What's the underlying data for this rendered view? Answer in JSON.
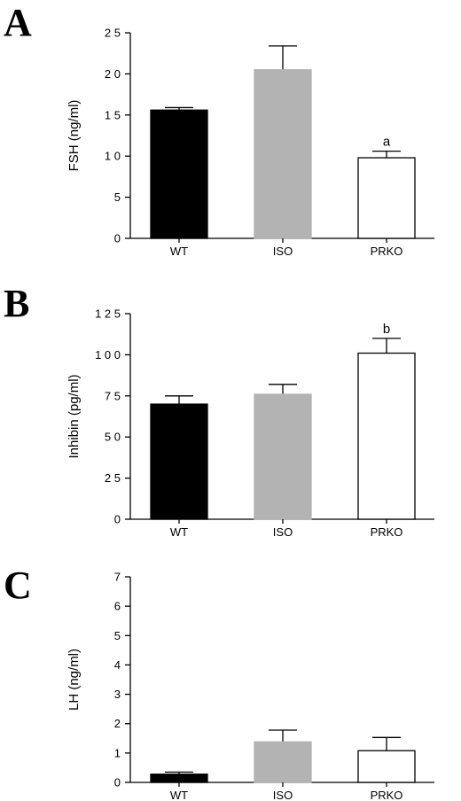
{
  "chart_data": [
    {
      "panel": "A",
      "type": "bar",
      "categories": [
        "WT",
        "ISO",
        "PRKO"
      ],
      "values": [
        15.6,
        20.5,
        9.8
      ],
      "errors": [
        0.3,
        2.9,
        0.8
      ],
      "colors": [
        "#000000",
        "#b3b3b3",
        "#ffffff"
      ],
      "ylabel": "FSH (ng/ml)",
      "ylim": [
        0,
        25
      ],
      "yticks": [
        0,
        5,
        10,
        15,
        20,
        25
      ],
      "ytick_labels": [
        "0",
        "5",
        "1 0",
        "1 5",
        "2 0",
        "2 5"
      ],
      "annotations": [
        {
          "category": "PRKO",
          "text": "a"
        }
      ]
    },
    {
      "panel": "B",
      "type": "bar",
      "categories": [
        "WT",
        "ISO",
        "PRKO"
      ],
      "values": [
        70,
        76,
        101
      ],
      "errors": [
        5,
        6,
        9
      ],
      "colors": [
        "#000000",
        "#b3b3b3",
        "#ffffff"
      ],
      "ylabel": "Inhibin  (pg/ml)",
      "ylim": [
        0,
        125
      ],
      "yticks": [
        0,
        25,
        50,
        75,
        100,
        125
      ],
      "ytick_labels": [
        "0",
        "2 5",
        "5 0",
        "7 5",
        "1 0 0",
        "1 2 5"
      ],
      "annotations": [
        {
          "category": "PRKO",
          "text": "b"
        }
      ]
    },
    {
      "panel": "C",
      "type": "bar",
      "categories": [
        "WT",
        "ISO",
        "PRKO"
      ],
      "values": [
        0.28,
        1.38,
        1.08
      ],
      "errors": [
        0.07,
        0.4,
        0.45
      ],
      "colors": [
        "#000000",
        "#b3b3b3",
        "#ffffff"
      ],
      "ylabel": "LH (ng/ml)",
      "ylim": [
        0,
        7
      ],
      "yticks": [
        0,
        1,
        2,
        3,
        4,
        5,
        6,
        7
      ],
      "ytick_labels": [
        "0",
        "1",
        "2",
        "3",
        "4",
        "5",
        "6",
        "7"
      ],
      "annotations": []
    }
  ]
}
